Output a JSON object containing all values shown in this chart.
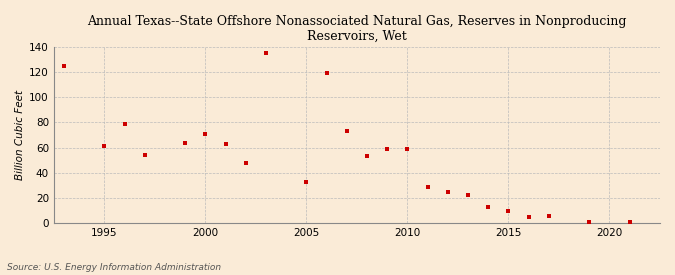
{
  "title": "Annual Texas--State Offshore Nonassociated Natural Gas, Reserves in Nonproducing\nReservoirs, Wet",
  "ylabel": "Billion Cubic Feet",
  "source": "Source: U.S. Energy Information Administration",
  "background_color": "#faebd7",
  "marker_color": "#cc0000",
  "xlim": [
    1992.5,
    2022.5
  ],
  "ylim": [
    0,
    140
  ],
  "yticks": [
    0,
    20,
    40,
    60,
    80,
    100,
    120,
    140
  ],
  "xticks": [
    1995,
    2000,
    2005,
    2010,
    2015,
    2020
  ],
  "years": [
    1993,
    1995,
    1996,
    1997,
    1999,
    2000,
    2001,
    2002,
    2003,
    2005,
    2006,
    2007,
    2008,
    2009,
    2010,
    2011,
    2012,
    2013,
    2014,
    2015,
    2016,
    2017,
    2019,
    2021
  ],
  "values": [
    125,
    61,
    79,
    54,
    64,
    71,
    63,
    48,
    135,
    33,
    119,
    73,
    53,
    59,
    59,
    29,
    25,
    22,
    13,
    10,
    5,
    6,
    1,
    1
  ]
}
